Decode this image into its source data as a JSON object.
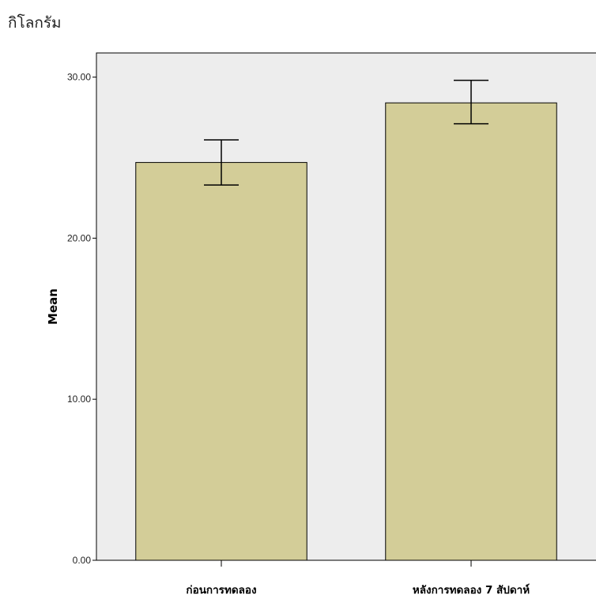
{
  "unit_label": "กิโลกรัม",
  "chart_data": {
    "type": "bar",
    "title": "",
    "xlabel": "",
    "ylabel": "Mean",
    "ylim": [
      0,
      31.5
    ],
    "yticks": [
      "0.00",
      "10.00",
      "20.00",
      "30.00"
    ],
    "ytick_values": [
      0,
      10,
      20,
      30
    ],
    "categories": [
      "ก่อนการทดลอง",
      "หลังการทดลอง 7 สัปดาห์"
    ],
    "values": [
      24.7,
      28.4
    ],
    "error_low": [
      23.3,
      27.1
    ],
    "error_high": [
      26.1,
      29.8
    ],
    "grid": false,
    "colors": {
      "bar": "#d3cd98",
      "plot_bg": "#ededed",
      "stroke": "#000000"
    }
  }
}
